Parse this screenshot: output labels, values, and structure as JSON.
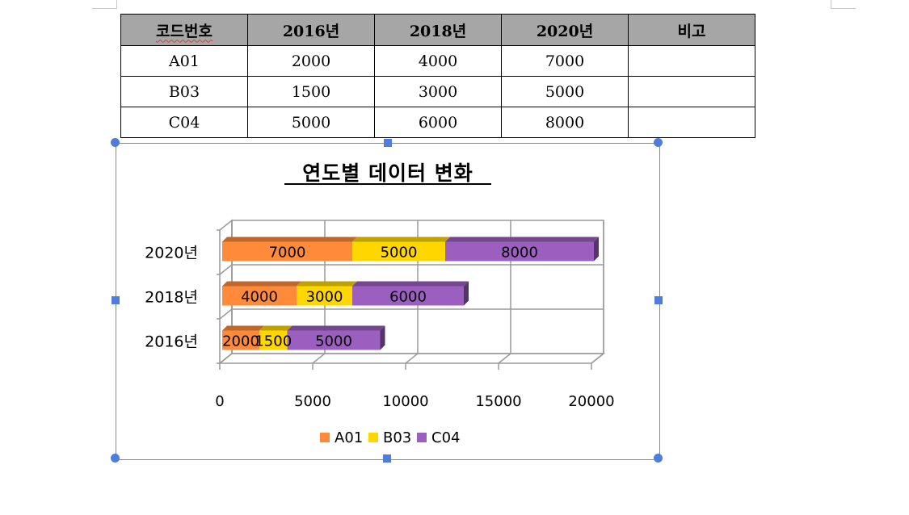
{
  "table": {
    "headers": [
      "코드번호",
      "2016년",
      "2018년",
      "2020년",
      "비고"
    ],
    "rows": [
      [
        "A01",
        "2000",
        "4000",
        "7000",
        ""
      ],
      [
        "B03",
        "1500",
        "3000",
        "5000",
        ""
      ],
      [
        "C04",
        "5000",
        "6000",
        "8000",
        ""
      ]
    ]
  },
  "chart_data": {
    "type": "bar",
    "orientation": "horizontal",
    "stacked": true,
    "style": "3d",
    "title": "연도별 데이터 변화",
    "categories": [
      "2016년",
      "2018년",
      "2020년"
    ],
    "series": [
      {
        "name": "A01",
        "values": [
          2000,
          4000,
          7000
        ],
        "color": "#ff8a3a"
      },
      {
        "name": "B03",
        "values": [
          1500,
          3000,
          5000
        ],
        "color": "#ffd700"
      },
      {
        "name": "C04",
        "values": [
          5000,
          6000,
          8000
        ],
        "color": "#9b5fc0"
      }
    ],
    "xlim": [
      0,
      20000
    ],
    "x_ticks": [
      "0",
      "5000",
      "10000",
      "15000",
      "20000"
    ],
    "grid": true,
    "data_labels": true,
    "legend": "bottom"
  }
}
